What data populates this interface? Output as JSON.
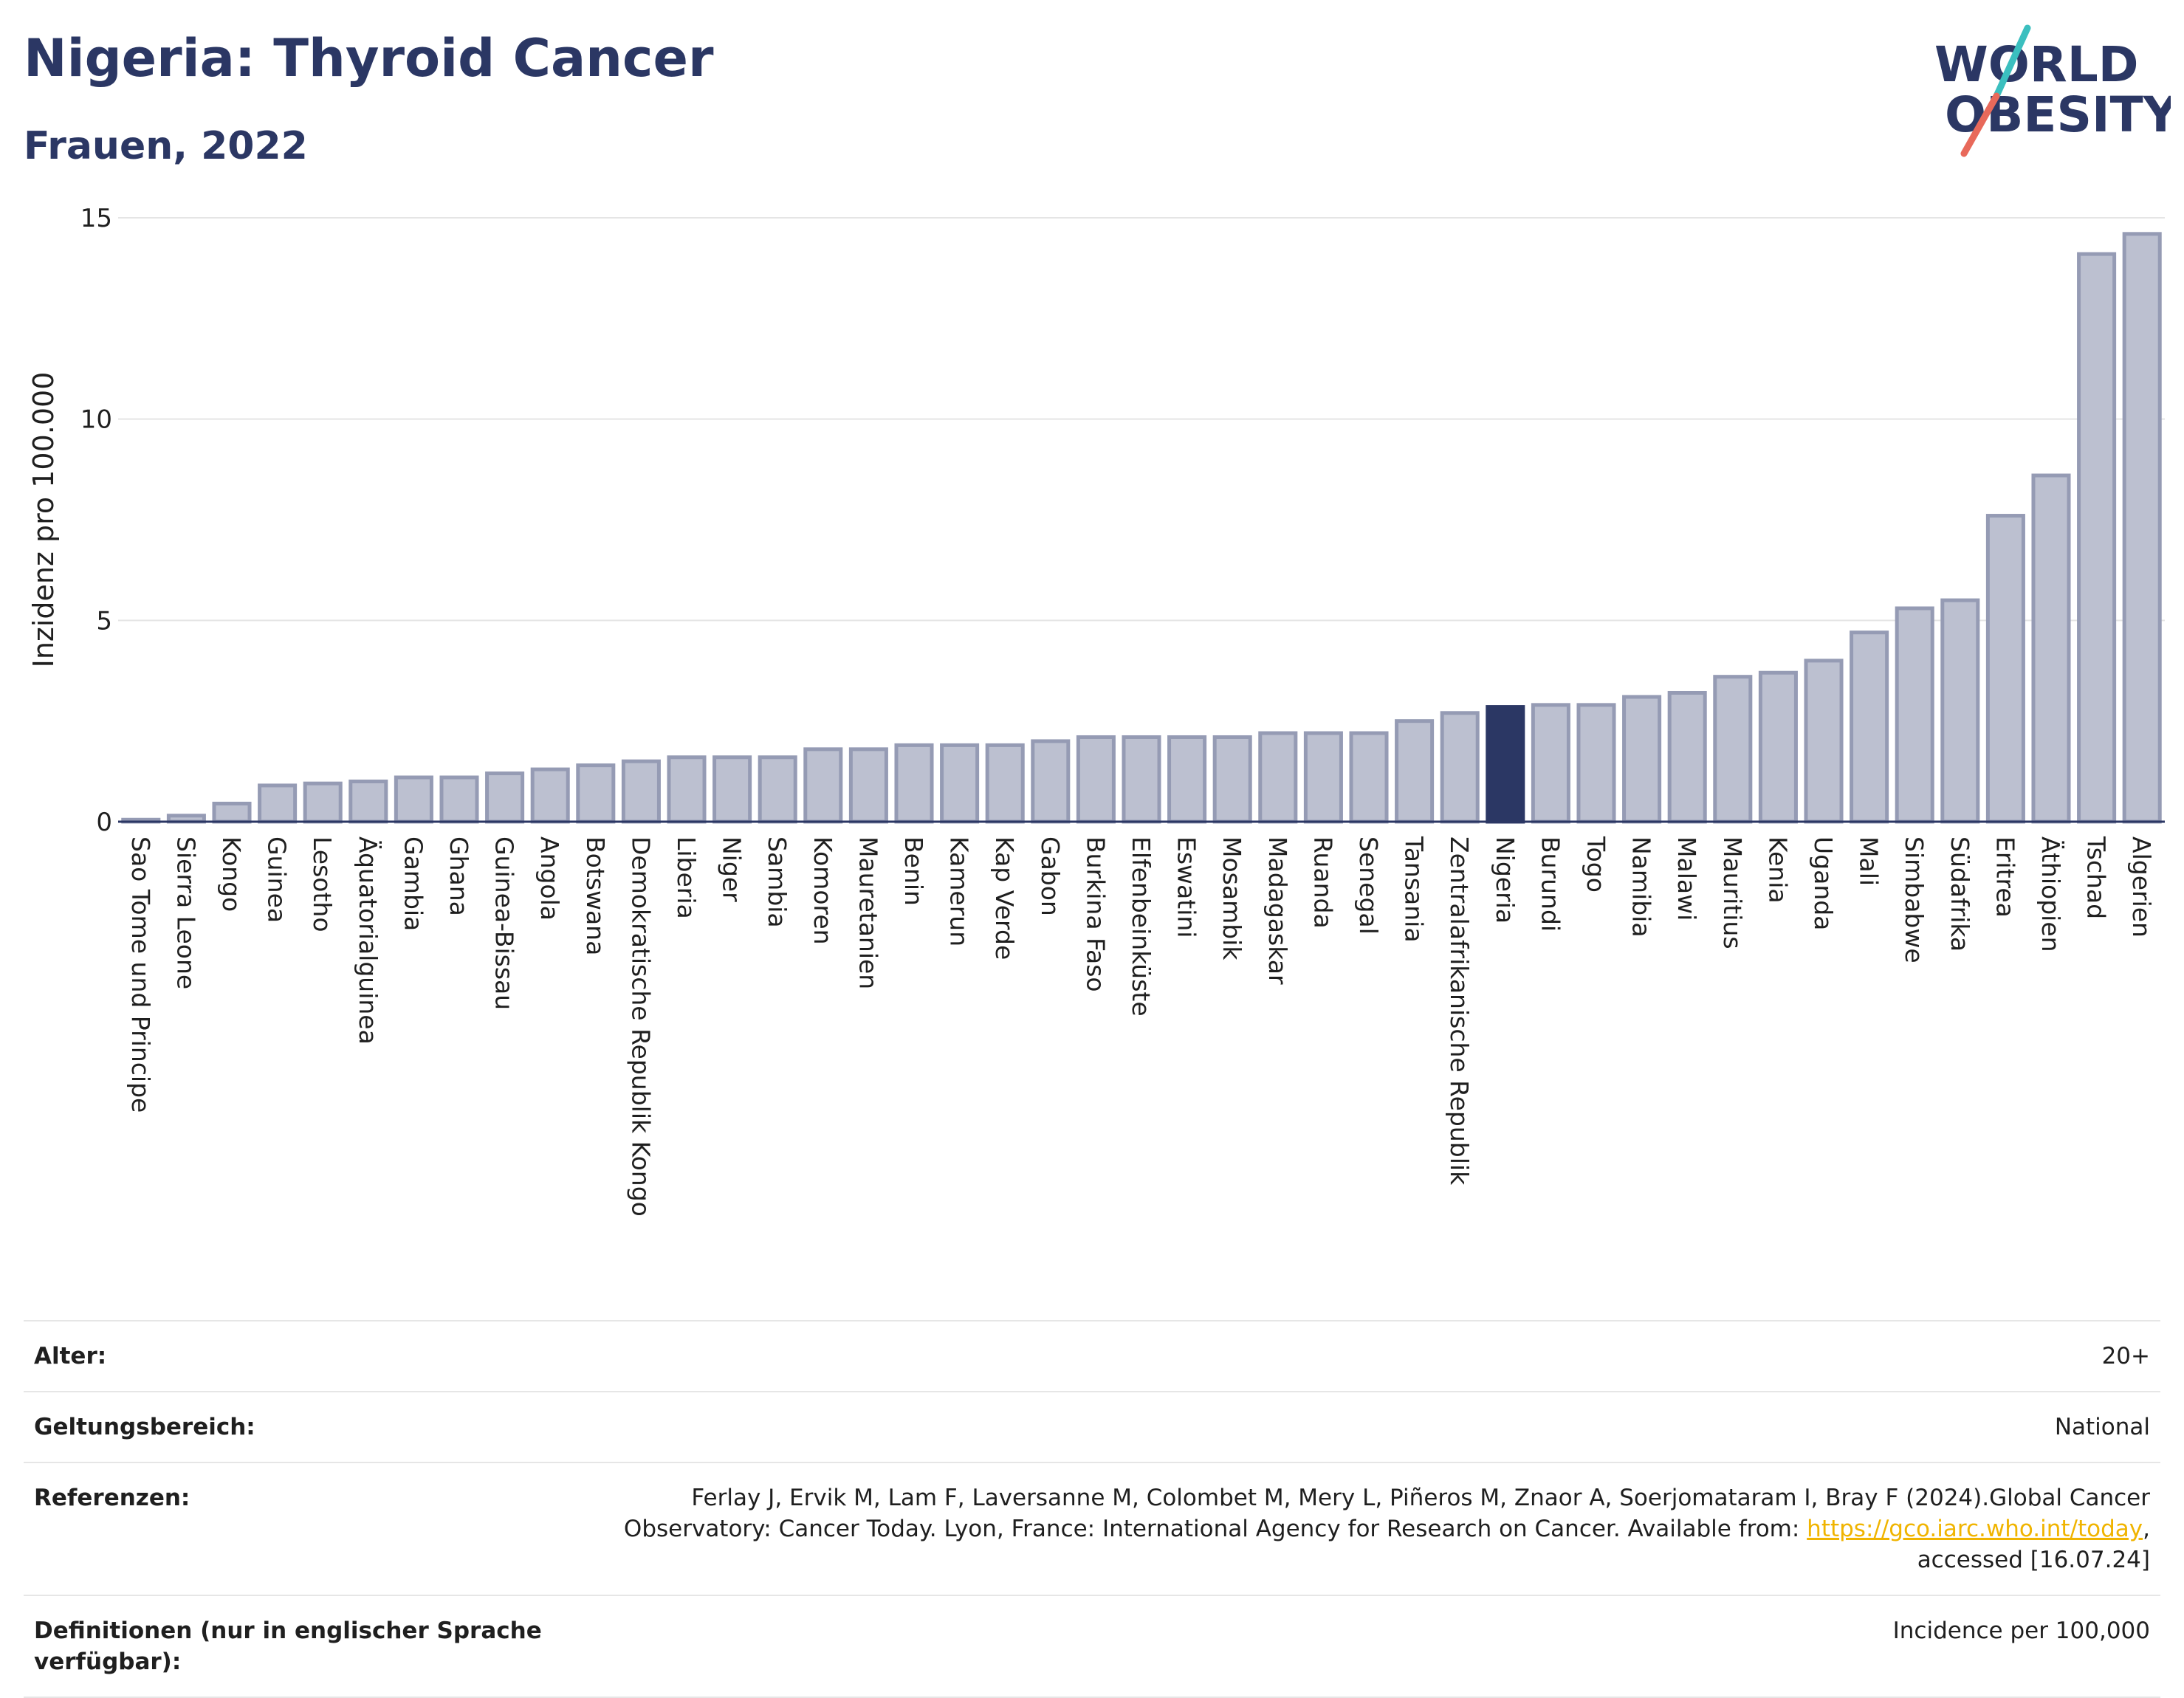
{
  "header": {
    "title": "Nigeria: Thyroid Cancer",
    "subtitle": "Frauen, 2022"
  },
  "logo": {
    "line1": "WORLD",
    "line2": "OBESITY",
    "accent_teal": "#3bbfbf",
    "accent_red": "#e8695a",
    "text_color": "#2b3764"
  },
  "chart_data": {
    "type": "bar",
    "ylabel": "Inzidenz pro 100.000",
    "ylim": [
      0,
      15
    ],
    "yticks": [
      0,
      5,
      10,
      15
    ],
    "grid": true,
    "highlight": "Nigeria",
    "bar_color": "#bcc0d0",
    "bar_border_color": "#959bb4",
    "highlight_color": "#2b3764",
    "categories": [
      "Sao Tome und Principe",
      "Sierra Leone",
      "Kongo",
      "Guinea",
      "Lesotho",
      "Äquatorialguinea",
      "Gambia",
      "Ghana",
      "Guinea-Bissau",
      "Angola",
      "Botswana",
      "Demokratische Republik Kongo",
      "Liberia",
      "Niger",
      "Sambia",
      "Komoren",
      "Mauretanien",
      "Benin",
      "Kamerun",
      "Kap Verde",
      "Gabon",
      "Burkina Faso",
      "Elfenbeinküste",
      "Eswatini",
      "Mosambik",
      "Madagaskar",
      "Ruanda",
      "Senegal",
      "Tansania",
      "Zentralafrikanische Republik",
      "Nigeria",
      "Burundi",
      "Togo",
      "Namibia",
      "Malawi",
      "Mauritius",
      "Kenia",
      "Uganda",
      "Mali",
      "Simbabwe",
      "Südafrika",
      "Eritrea",
      "Äthiopien",
      "Tschad",
      "Algerien"
    ],
    "values": [
      0.05,
      0.15,
      0.45,
      0.9,
      0.95,
      1.0,
      1.1,
      1.1,
      1.2,
      1.3,
      1.4,
      1.5,
      1.6,
      1.6,
      1.6,
      1.8,
      1.8,
      1.9,
      1.9,
      1.9,
      2.0,
      2.1,
      2.1,
      2.1,
      2.1,
      2.2,
      2.2,
      2.2,
      2.5,
      2.7,
      2.85,
      2.9,
      2.9,
      3.1,
      3.2,
      3.6,
      3.7,
      4.0,
      4.7,
      5.3,
      5.5,
      7.6,
      8.6,
      14.1,
      14.6
    ]
  },
  "meta": {
    "age_label": "Alter:",
    "age_value": "20+",
    "scope_label": "Geltungsbereich:",
    "scope_value": "National",
    "refs_label": "Referenzen:",
    "refs_text_1": "Ferlay J, Ervik M, Lam F, Laversanne M, Colombet M, Mery L, Piñeros M, Znaor A, Soerjomataram I, Bray F (2024).Global Cancer",
    "refs_text_2": "Observatory: Cancer Today. Lyon, France: International Agency for Research on Cancer. Available from:",
    "refs_link": "https://gco.iarc.who.int/today",
    "refs_text_3": "accessed [16.07.24]",
    "definitions_label": "Definitionen (nur in englischer Sprache verfügbar):",
    "definitions_value": "Incidence per 100,000"
  }
}
